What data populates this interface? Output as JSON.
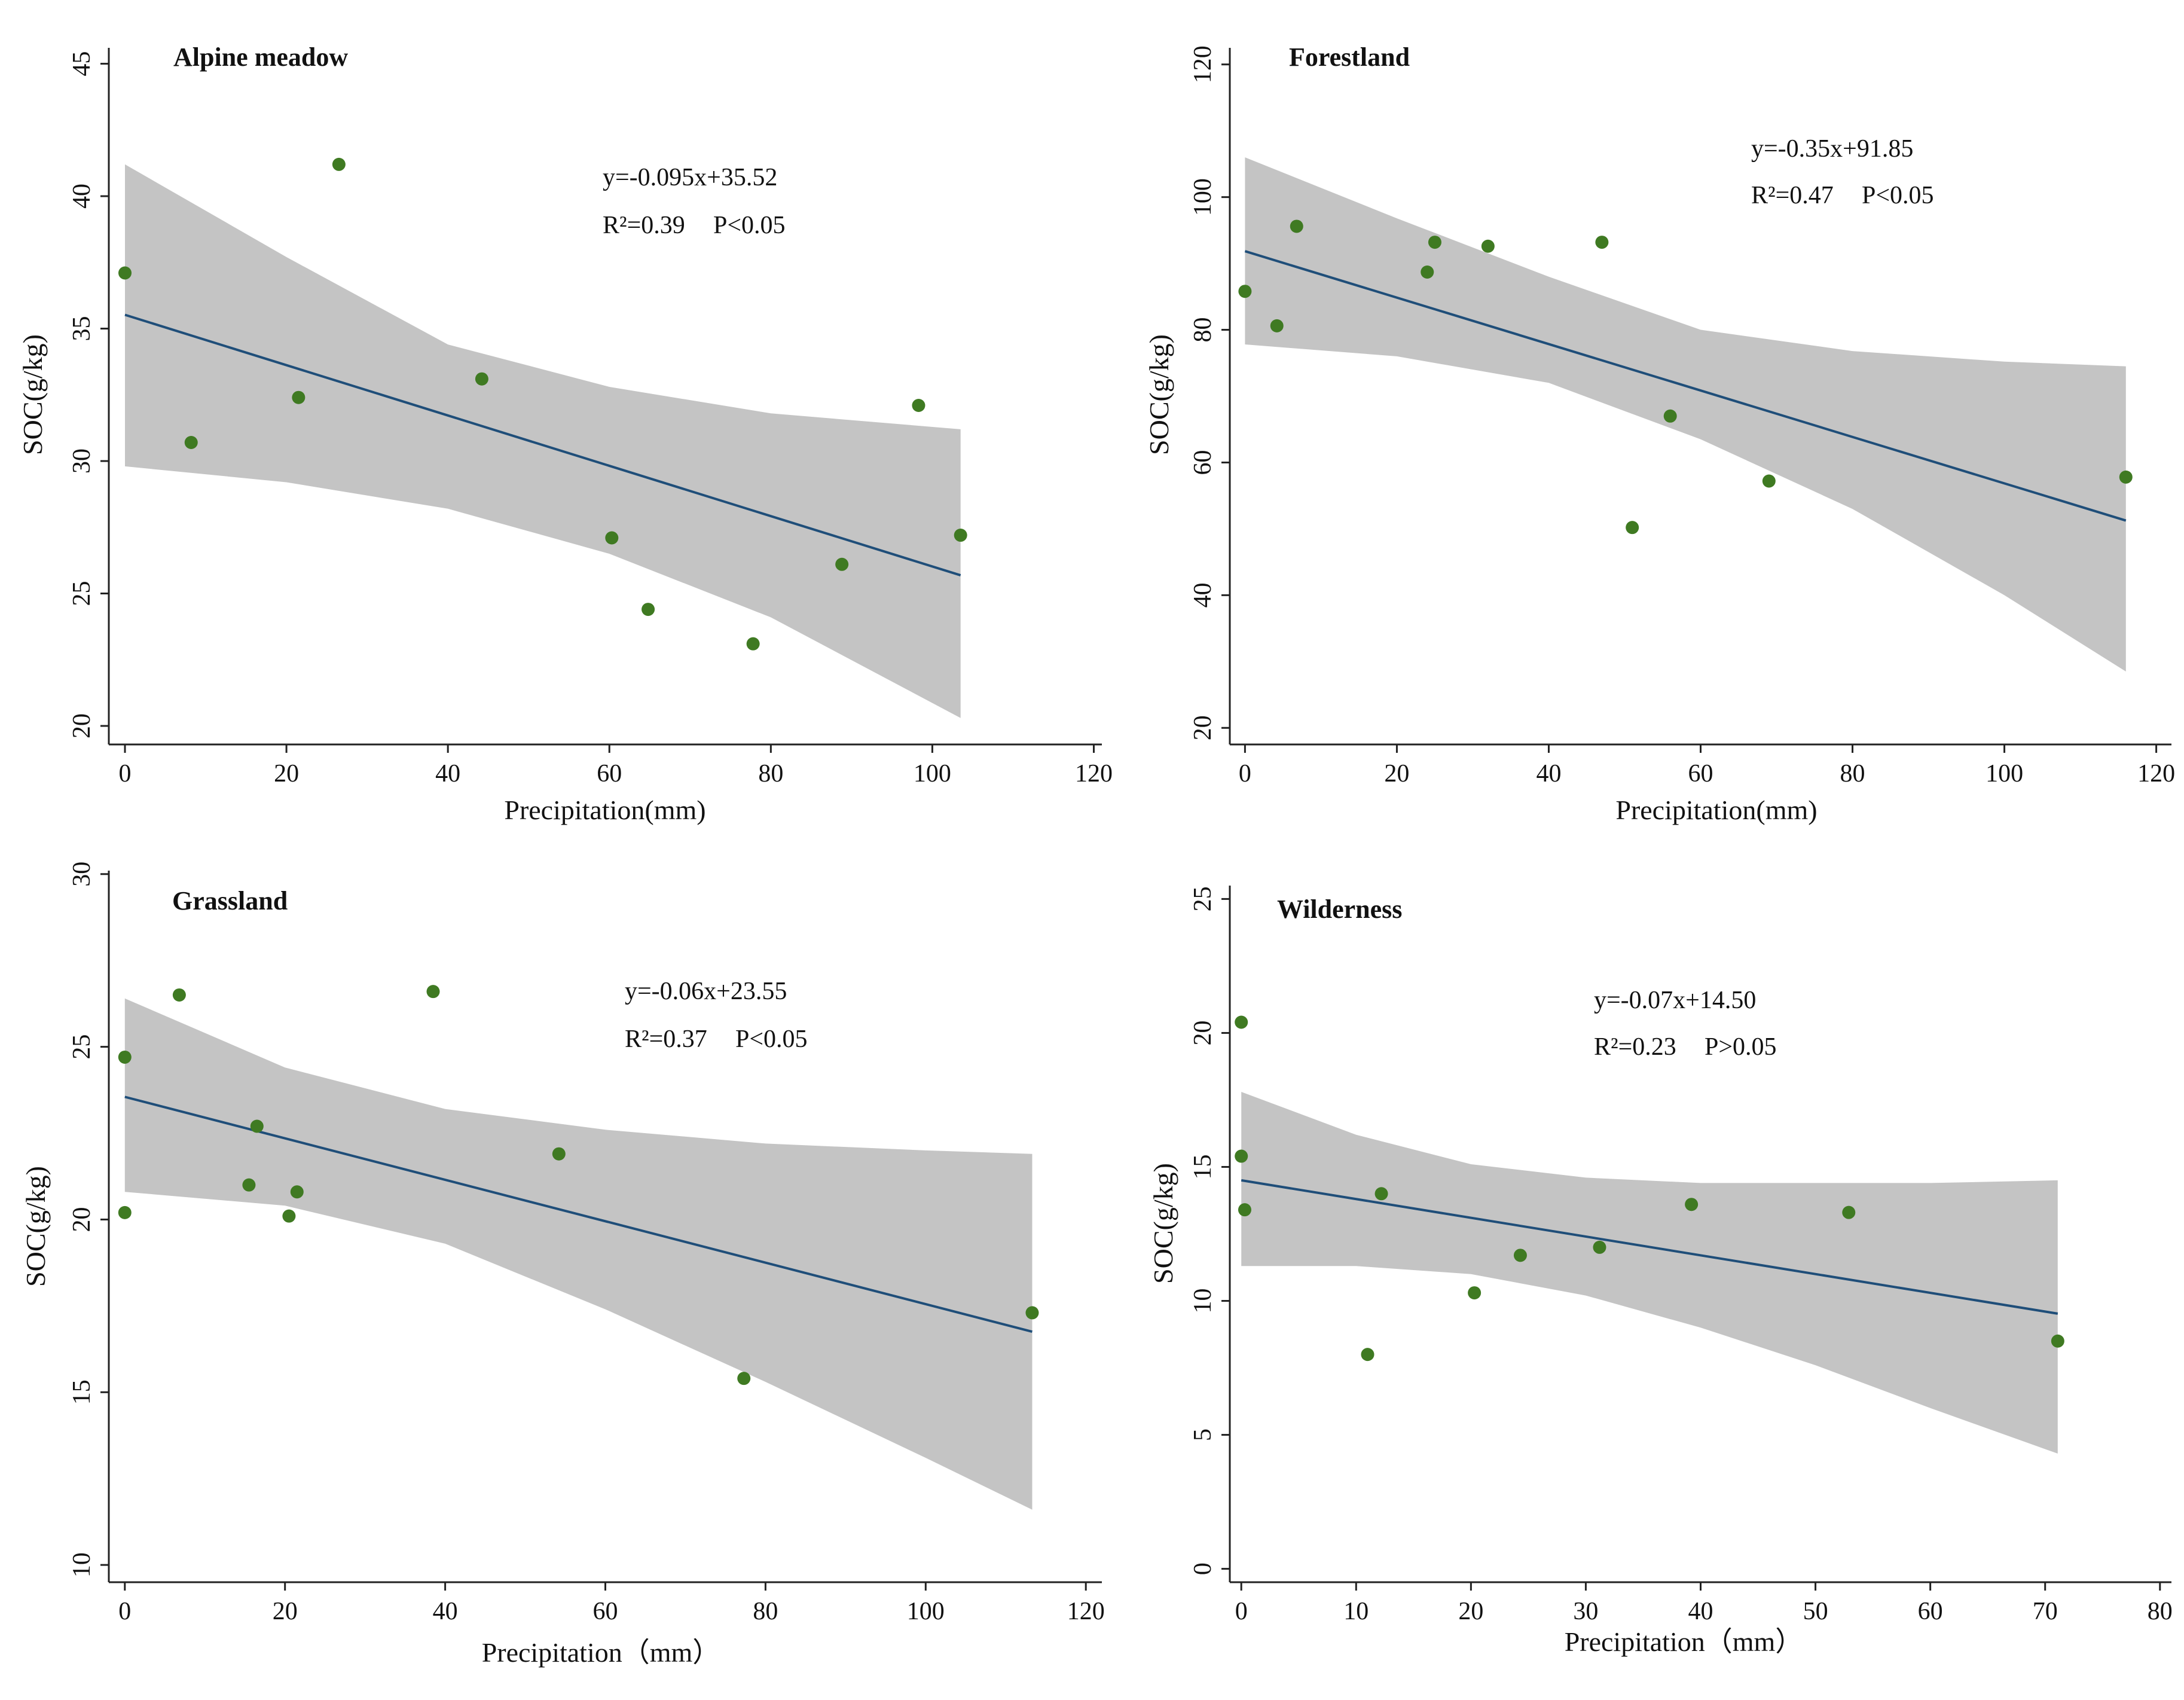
{
  "colors": {
    "point": "#3f7a22",
    "line": "#1f4e79",
    "band": "#c4c4c4",
    "axis": "#222222"
  },
  "chart_data": [
    {
      "type": "scatter",
      "title": "Alpine meadow",
      "xlabel": "Precipitation(mm)",
      "ylabel": "SOC(g/kg)",
      "xlim": [
        -2,
        121
      ],
      "ylim": [
        19.3,
        45.6
      ],
      "xticks": [
        0,
        20,
        40,
        60,
        80,
        100,
        120
      ],
      "yticks": [
        20,
        25,
        30,
        35,
        40,
        45
      ],
      "equation": "y=-0.095x+35.52",
      "r2_label": "R²=0.39",
      "p_label": "P<0.05",
      "points": [
        [
          0,
          37.1
        ],
        [
          8.2,
          30.7
        ],
        [
          21.5,
          32.4
        ],
        [
          26.5,
          41.2
        ],
        [
          44.2,
          33.1
        ],
        [
          60.3,
          27.1
        ],
        [
          64.8,
          24.4
        ],
        [
          77.8,
          23.1
        ],
        [
          88.8,
          26.1
        ],
        [
          98.3,
          32.1
        ],
        [
          103.5,
          27.2
        ]
      ],
      "fit": {
        "slope": -0.095,
        "intercept": 35.52,
        "x_range": [
          0,
          103.5
        ]
      },
      "ci_band": {
        "x": [
          0,
          20,
          40,
          60,
          80,
          103.5
        ],
        "lower": [
          29.8,
          29.2,
          28.2,
          26.5,
          24.1,
          20.3
        ],
        "upper": [
          41.2,
          37.7,
          34.4,
          32.8,
          31.8,
          31.2
        ]
      }
    },
    {
      "type": "scatter",
      "title": "Forestland",
      "xlabel": "Precipitation(mm)",
      "ylabel": "SOC(g/kg)",
      "xlim": [
        -2,
        122
      ],
      "ylim": [
        17.5,
        122.5
      ],
      "xticks": [
        0,
        20,
        40,
        60,
        80,
        100,
        120
      ],
      "yticks": [
        20,
        40,
        60,
        80,
        100,
        120
      ],
      "equation": "y=-0.35x+91.85",
      "r2_label": "R²=0.47",
      "p_label": "P<0.05",
      "points": [
        [
          0,
          85.8
        ],
        [
          4.2,
          80.6
        ],
        [
          6.8,
          95.6
        ],
        [
          24,
          88.7
        ],
        [
          25,
          93.2
        ],
        [
          32,
          92.6
        ],
        [
          47,
          93.2
        ],
        [
          51,
          50.2
        ],
        [
          56,
          67.0
        ],
        [
          69,
          57.2
        ],
        [
          116,
          57.8
        ]
      ],
      "fit": {
        "slope": -0.35,
        "intercept": 91.85,
        "x_range": [
          0,
          116
        ]
      },
      "ci_band": {
        "x": [
          0,
          20,
          40,
          60,
          80,
          100,
          116
        ],
        "lower": [
          77.8,
          76.0,
          72.0,
          63.5,
          53.0,
          40.0,
          28.5
        ],
        "upper": [
          106.0,
          96.8,
          88.0,
          80.0,
          76.8,
          75.2,
          74.5
        ]
      }
    },
    {
      "type": "scatter",
      "title": "Grassland",
      "xlabel": "Precipitation（mm）",
      "ylabel": "SOC(g/kg)",
      "xlim": [
        -2,
        122
      ],
      "ylim": [
        9.5,
        30.1
      ],
      "xticks": [
        0,
        20,
        40,
        60,
        80,
        100,
        120
      ],
      "yticks": [
        10,
        15,
        20,
        25,
        30
      ],
      "equation": "y=-0.06x+23.55",
      "r2_label": "R²=0.37",
      "p_label": "P<0.05",
      "points": [
        [
          0,
          24.7
        ],
        [
          0,
          20.2
        ],
        [
          6.8,
          26.5
        ],
        [
          15.5,
          21.0
        ],
        [
          16.5,
          22.7
        ],
        [
          20.5,
          20.1
        ],
        [
          21.5,
          20.8
        ],
        [
          38.5,
          26.6
        ],
        [
          54.2,
          21.9
        ],
        [
          77.3,
          15.4
        ],
        [
          113.3,
          17.3
        ]
      ],
      "fit": {
        "slope": -0.06,
        "intercept": 23.55,
        "x_range": [
          0,
          113.3
        ]
      },
      "ci_band": {
        "x": [
          0,
          20,
          40,
          60,
          80,
          100,
          113.3
        ],
        "lower": [
          20.8,
          20.4,
          19.3,
          17.4,
          15.3,
          13.1,
          11.6
        ],
        "upper": [
          26.4,
          24.4,
          23.2,
          22.6,
          22.2,
          22.0,
          21.9
        ]
      }
    },
    {
      "type": "scatter",
      "title": "Wilderness",
      "xlabel": "Precipitation（mm）",
      "ylabel": "SOC(g/kg)",
      "xlim": [
        -1,
        81
      ],
      "ylim": [
        -0.5,
        25.5
      ],
      "xticks": [
        0,
        10,
        20,
        30,
        40,
        50,
        60,
        70,
        80
      ],
      "yticks": [
        0,
        5,
        10,
        15,
        20,
        25
      ],
      "equation": "y=-0.07x+14.50",
      "r2_label": "R²=0.23",
      "p_label": "P>0.05",
      "points": [
        [
          0,
          20.4
        ],
        [
          0,
          15.4
        ],
        [
          0.3,
          13.4
        ],
        [
          11,
          8.0
        ],
        [
          12.2,
          14.0
        ],
        [
          20.3,
          10.3
        ],
        [
          24.3,
          11.7
        ],
        [
          31.2,
          12.0
        ],
        [
          39.2,
          13.6
        ],
        [
          52.9,
          13.3
        ],
        [
          71.1,
          8.5
        ]
      ],
      "fit": {
        "slope": -0.07,
        "intercept": 14.5,
        "x_range": [
          0,
          71.1
        ]
      },
      "ci_band": {
        "x": [
          0,
          10,
          20,
          30,
          40,
          50,
          60,
          71.1
        ],
        "lower": [
          11.3,
          11.3,
          11.0,
          10.2,
          9.0,
          7.6,
          6.0,
          4.3
        ],
        "upper": [
          17.8,
          16.2,
          15.1,
          14.6,
          14.4,
          14.4,
          14.4,
          14.5
        ]
      }
    }
  ]
}
